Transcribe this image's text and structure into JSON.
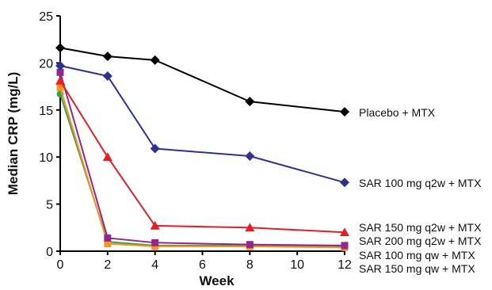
{
  "chart_data": {
    "type": "line",
    "title": "",
    "xlabel": "Week",
    "ylabel": "Median CRP (mg/L)",
    "xlim": [
      0,
      12
    ],
    "ylim": [
      0,
      25
    ],
    "x_ticks": [
      0,
      2,
      4,
      6,
      8,
      10,
      12
    ],
    "y_ticks": [
      0,
      5,
      10,
      15,
      20,
      25
    ],
    "grid": false,
    "legend": "inline labels at right end of each series",
    "series": [
      {
        "name": "Placebo + MTX",
        "marker": "diamond",
        "color": "#000000",
        "x": [
          0,
          2,
          4,
          8,
          12
        ],
        "y": [
          21.6,
          20.7,
          20.3,
          15.9,
          14.8
        ]
      },
      {
        "name": "SAR 100 mg q2w + MTX",
        "marker": "diamond",
        "color": "#2e3192",
        "x": [
          0,
          2,
          4,
          8,
          12
        ],
        "y": [
          19.7,
          18.6,
          10.9,
          10.1,
          7.3
        ]
      },
      {
        "name": "SAR 150 mg q2w + MTX",
        "marker": "triangle",
        "color": "#e81c24",
        "x": [
          0,
          2,
          4,
          8,
          12
        ],
        "y": [
          18.1,
          10.0,
          2.7,
          2.5,
          2.0
        ]
      },
      {
        "name": "SAR 200 mg q2w + MTX",
        "marker": "square",
        "color": "#93278f",
        "x": [
          0,
          2,
          4,
          8,
          12
        ],
        "y": [
          19.0,
          1.4,
          0.9,
          0.7,
          0.6
        ]
      },
      {
        "name": "SAR 100 mg qw + MTX",
        "marker": "square",
        "color": "#f7941d",
        "x": [
          0,
          2,
          4,
          8,
          12
        ],
        "y": [
          17.4,
          0.8,
          0.5,
          0.5,
          0.4
        ]
      },
      {
        "name": "SAR 150 mg qw + MTX",
        "marker": "circle",
        "color": "#3aa14a",
        "x": [
          0,
          2,
          4,
          8,
          12
        ],
        "y": [
          16.7,
          1.0,
          0.6,
          0.6,
          0.5
        ]
      }
    ]
  }
}
